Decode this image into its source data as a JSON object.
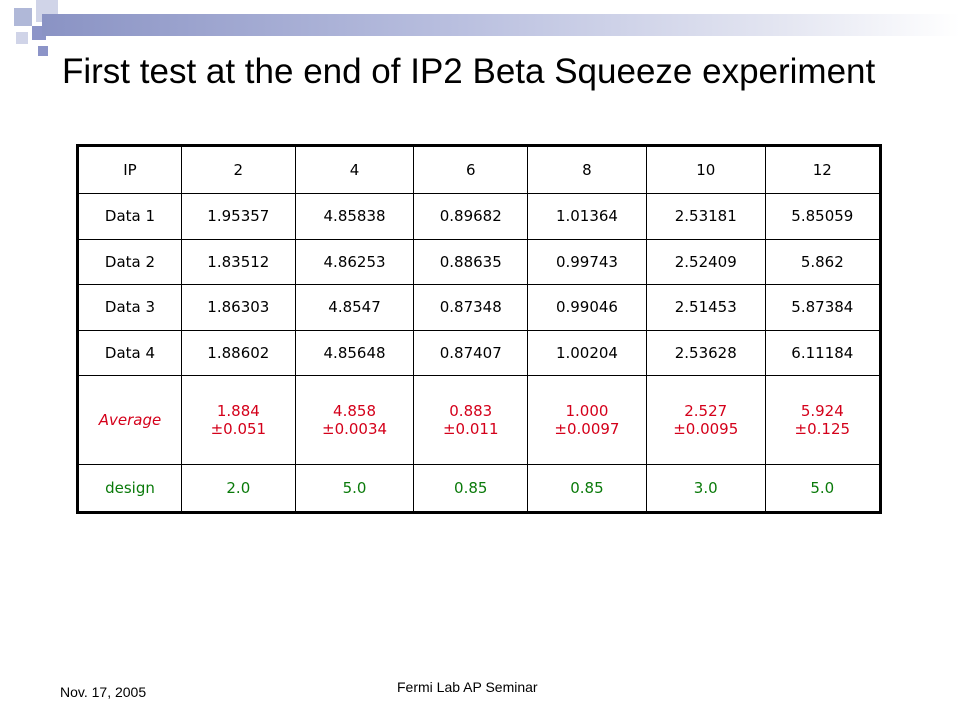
{
  "slide": {
    "title": "First test at the end of IP2 Beta Squeeze experiment",
    "footer_date": "Nov. 17, 2005",
    "footer_title": "Fermi Lab AP Seminar"
  },
  "table": {
    "header": [
      "IP",
      "2",
      "4",
      "6",
      "8",
      "10",
      "12"
    ],
    "rows": [
      {
        "label": "Data 1",
        "values": [
          "1.95357",
          "4.85838",
          "0.89682",
          "1.01364",
          "2.53181",
          "5.85059"
        ]
      },
      {
        "label": "Data 2",
        "values": [
          "1.83512",
          "4.86253",
          "0.88635",
          "0.99743",
          "2.52409",
          "5.862"
        ]
      },
      {
        "label": "Data 3",
        "values": [
          "1.86303",
          "4.8547",
          "0.87348",
          "0.99046",
          "2.51453",
          "5.87384"
        ]
      },
      {
        "label": "Data 4",
        "values": [
          "1.88602",
          "4.85648",
          "0.87407",
          "1.00204",
          "2.53628",
          "6.11184"
        ]
      }
    ],
    "average": {
      "label": "Average",
      "values": [
        {
          "mean": "1.884",
          "err": "±0.051"
        },
        {
          "mean": "4.858",
          "err": "±0.0034"
        },
        {
          "mean": "0.883",
          "err": "±0.011"
        },
        {
          "mean": "1.000",
          "err": "±0.0097"
        },
        {
          "mean": "2.527",
          "err": "±0.0095"
        },
        {
          "mean": "5.924",
          "err": "±0.125"
        }
      ]
    },
    "design": {
      "label": "design",
      "values": [
        "2.0",
        "5.0",
        "0.85",
        "0.85",
        "3.0",
        "5.0"
      ]
    }
  },
  "colors": {
    "average_text": "#d4001a",
    "design_text": "#0a7a0a",
    "decoration": "#8c94c8"
  }
}
